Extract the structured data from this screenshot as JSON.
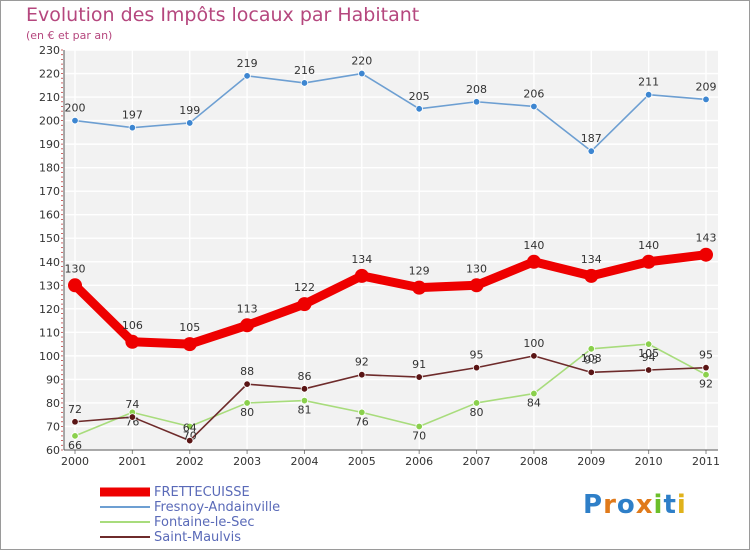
{
  "title": "Evolution des Impôts locaux par Habitant",
  "subtitle": "(en € et par an)",
  "logo": {
    "text": "Proxiti",
    "letters": [
      {
        "ch": "P",
        "color": "#2e7fc8"
      },
      {
        "ch": "r",
        "color": "#e07a1b"
      },
      {
        "ch": "o",
        "color": "#2e7fc8"
      },
      {
        "ch": "x",
        "color": "#e07a1b"
      },
      {
        "ch": "i",
        "color": "#6cbf2a"
      },
      {
        "ch": "t",
        "color": "#2e7fc8"
      },
      {
        "ch": "i",
        "color": "#e0b21b"
      }
    ]
  },
  "chart_data": {
    "type": "line",
    "title": "Evolution des Impôts locaux par Habitant",
    "subtitle": "(en € et par an)",
    "xlabel": "",
    "ylabel": "",
    "x": [
      "2000",
      "2001",
      "2002",
      "2003",
      "2004",
      "2005",
      "2006",
      "2007",
      "2008",
      "2009",
      "2010",
      "2011"
    ],
    "ylim": [
      60,
      230
    ],
    "yticks": [
      60,
      70,
      80,
      90,
      100,
      110,
      120,
      130,
      140,
      150,
      160,
      170,
      180,
      190,
      200,
      210,
      220,
      230
    ],
    "grid": true,
    "legend_position": "bottom-left",
    "series": [
      {
        "name": "FRETTECUISSE",
        "color": "#ee0000",
        "values": [
          130,
          106,
          105,
          113,
          122,
          134,
          129,
          130,
          140,
          134,
          140,
          143
        ]
      },
      {
        "name": "Fresnoy-Andainville",
        "color": "#6d9fd2",
        "values": [
          200,
          197,
          199,
          219,
          216,
          220,
          205,
          208,
          206,
          187,
          211,
          209
        ]
      },
      {
        "name": "Fontaine-le-Sec",
        "color": "#a8dc7c",
        "values": [
          66,
          76,
          70,
          80,
          81,
          76,
          70,
          80,
          84,
          103,
          105,
          92
        ]
      },
      {
        "name": "Saint-Maulvis",
        "color": "#6e2b2b",
        "values": [
          72,
          74,
          64,
          88,
          86,
          92,
          91,
          95,
          100,
          93,
          94,
          95
        ]
      }
    ]
  }
}
